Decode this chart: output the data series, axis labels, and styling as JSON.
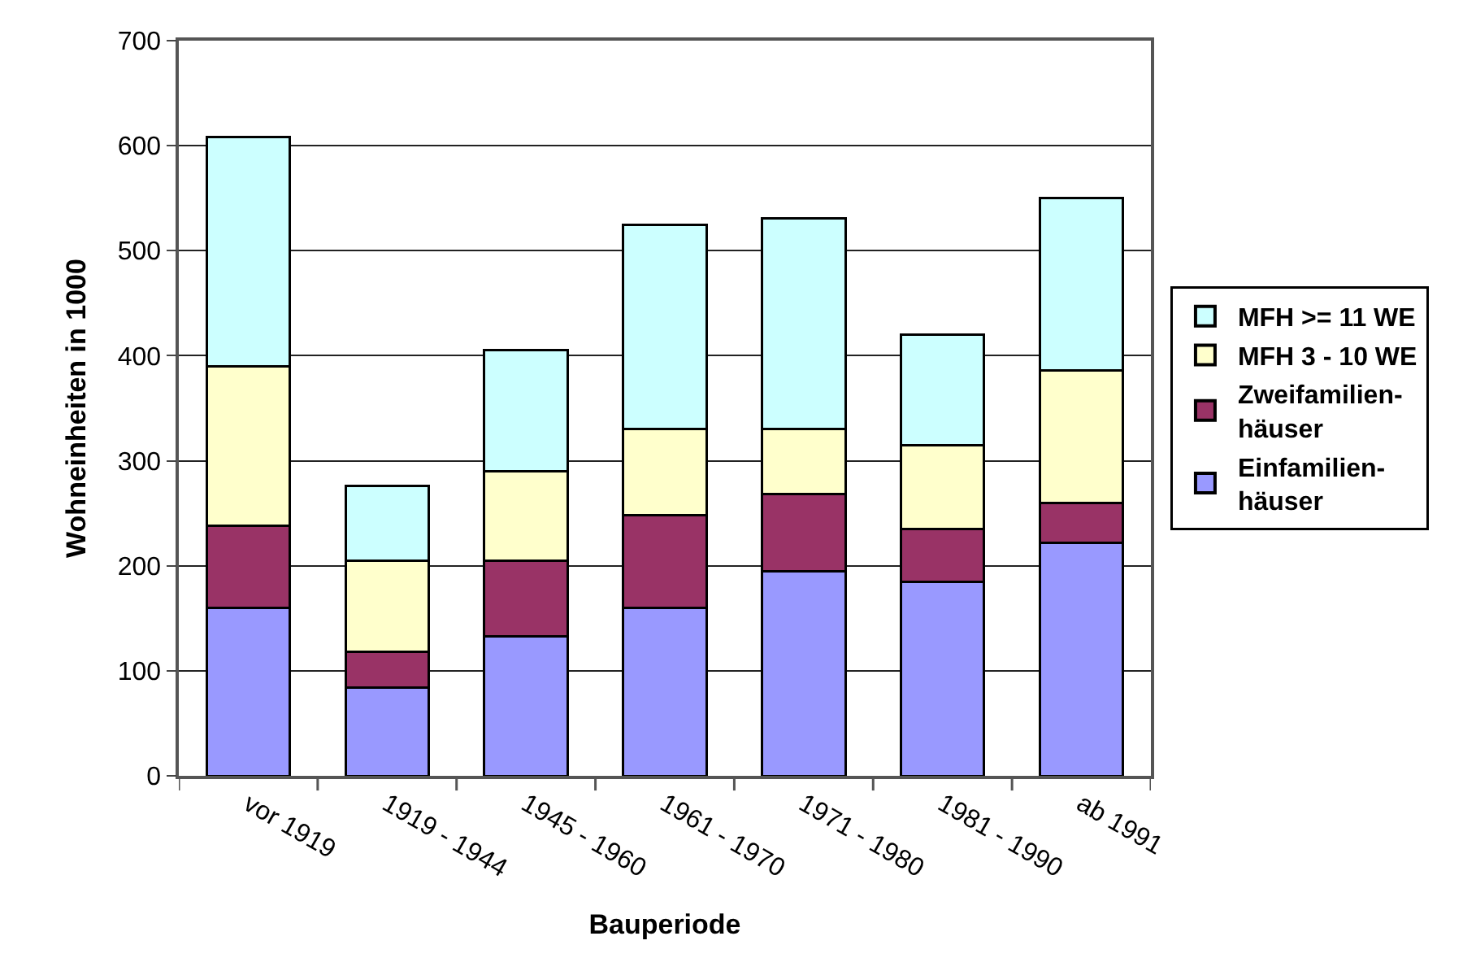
{
  "chart_data": {
    "type": "bar",
    "stacked": true,
    "xlabel": "Bauperiode",
    "ylabel": "Wohneinheiten in 1000",
    "categories": [
      "vor 1919",
      "1919 - 1944",
      "1945 - 1960",
      "1961 - 1970",
      "1971 - 1980",
      "1981 - 1990",
      "ab 1991"
    ],
    "series": [
      {
        "name": "Einfamilien-\nhäuser",
        "color": "#9999ff",
        "values": [
          160,
          84,
          133,
          160,
          195,
          185,
          222
        ]
      },
      {
        "name": "Zweifamilien-\nhäuser",
        "color": "#993366",
        "values": [
          78,
          34,
          72,
          88,
          73,
          50,
          38
        ]
      },
      {
        "name": "MFH 3 - 10 WE",
        "color": "#ffffcc",
        "values": [
          152,
          87,
          85,
          82,
          62,
          80,
          126
        ]
      },
      {
        "name": "MFH >= 11 WE",
        "color": "#ccffff",
        "values": [
          218,
          71,
          115,
          195,
          201,
          105,
          164
        ]
      }
    ],
    "ylim": [
      0,
      700
    ],
    "yticks": [
      0,
      100,
      200,
      300,
      400,
      500,
      600,
      700
    ],
    "grid": "y",
    "legend": "right"
  }
}
